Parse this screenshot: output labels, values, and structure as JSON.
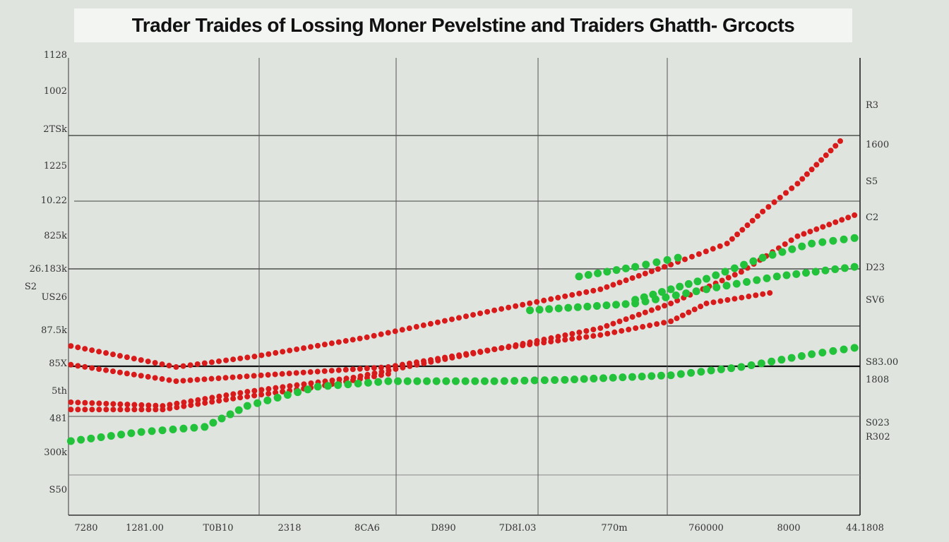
{
  "chart_data": {
    "type": "scatter",
    "title": "Trader Traides of Lossing Moner Pevelstine and Traiders Ghatth- Grcocts",
    "xlim": [
      0,
      100
    ],
    "ylim": [
      0,
      100
    ],
    "grid": true,
    "y_ticks_left": [
      "1128",
      "1002",
      "2TSk",
      "1225",
      "10.22",
      "825k",
      "26.183k",
      "S2",
      "US26",
      "87.5k",
      "85X",
      "5th",
      "481",
      "300k",
      "S50"
    ],
    "y_ticks_right": [
      "R3",
      "1600",
      "S5",
      "C2",
      "D23",
      "SV6",
      "S83.00",
      "1808",
      "S023",
      "R302"
    ],
    "x_ticks": [
      "7280",
      "1281.00",
      "T0B10",
      "2318",
      "8CA6",
      "D890",
      "7D8I.03",
      "770m",
      "760000",
      "8000",
      "44.1808"
    ],
    "colors": {
      "red": "#d91a1a",
      "green": "#22c23a"
    },
    "series": [
      {
        "color": "red",
        "points": [
          [
            0.3,
            37.0
          ],
          [
            13.6,
            32.4
          ],
          [
            23.5,
            34.7
          ],
          [
            37.7,
            38.9
          ],
          [
            53.8,
            44.8
          ],
          [
            67.2,
            49.4
          ],
          [
            76.1,
            54.8
          ],
          [
            83.2,
            59.4
          ],
          [
            87.7,
            66.4
          ],
          [
            92.1,
            72.5
          ],
          [
            97.5,
            81.8
          ]
        ]
      },
      {
        "color": "red",
        "points": [
          [
            0.3,
            32.9
          ],
          [
            13.6,
            29.3
          ],
          [
            27.0,
            30.9
          ],
          [
            40.4,
            32.4
          ],
          [
            53.8,
            36.3
          ],
          [
            67.2,
            39.4
          ],
          [
            76.1,
            42.4
          ],
          [
            80.6,
            46.3
          ],
          [
            88.6,
            48.6
          ]
        ]
      },
      {
        "color": "red",
        "points": [
          [
            0.3,
            24.7
          ],
          [
            11.9,
            23.9
          ],
          [
            22.6,
            27.0
          ],
          [
            36.0,
            30.1
          ],
          [
            44.9,
            33.2
          ],
          [
            58.3,
            37.8
          ],
          [
            67.2,
            40.9
          ],
          [
            76.1,
            46.3
          ],
          [
            85.0,
            53.2
          ],
          [
            92.1,
            61.0
          ],
          [
            99.3,
            65.6
          ]
        ]
      },
      {
        "color": "red",
        "points": [
          [
            0.3,
            23.1
          ],
          [
            11.9,
            23.1
          ],
          [
            20.8,
            25.5
          ],
          [
            31.5,
            28.1
          ],
          [
            40.4,
            30.9
          ]
        ]
      },
      {
        "color": "green",
        "points": [
          [
            0.3,
            16.2
          ],
          [
            9.2,
            18.2
          ],
          [
            17.2,
            19.3
          ],
          [
            22.6,
            23.9
          ],
          [
            31.5,
            28.1
          ],
          [
            40.4,
            29.3
          ],
          [
            53.8,
            29.3
          ],
          [
            62.7,
            29.6
          ],
          [
            76.1,
            30.6
          ],
          [
            85.0,
            32.4
          ],
          [
            93.9,
            35.2
          ],
          [
            99.3,
            36.6
          ]
        ]
      },
      {
        "color": "green",
        "points": [
          [
            58.3,
            44.8
          ],
          [
            71.6,
            46.3
          ],
          [
            80.6,
            49.4
          ],
          [
            89.5,
            52.2
          ],
          [
            99.3,
            54.3
          ]
        ]
      },
      {
        "color": "green",
        "points": [
          [
            71.6,
            47.1
          ],
          [
            80.6,
            51.7
          ],
          [
            87.7,
            56.3
          ],
          [
            93.9,
            59.4
          ],
          [
            99.3,
            60.6
          ]
        ]
      },
      {
        "color": "green",
        "points": [
          [
            64.5,
            52.2
          ],
          [
            71.6,
            54.3
          ],
          [
            77.0,
            56.3
          ]
        ]
      }
    ]
  }
}
